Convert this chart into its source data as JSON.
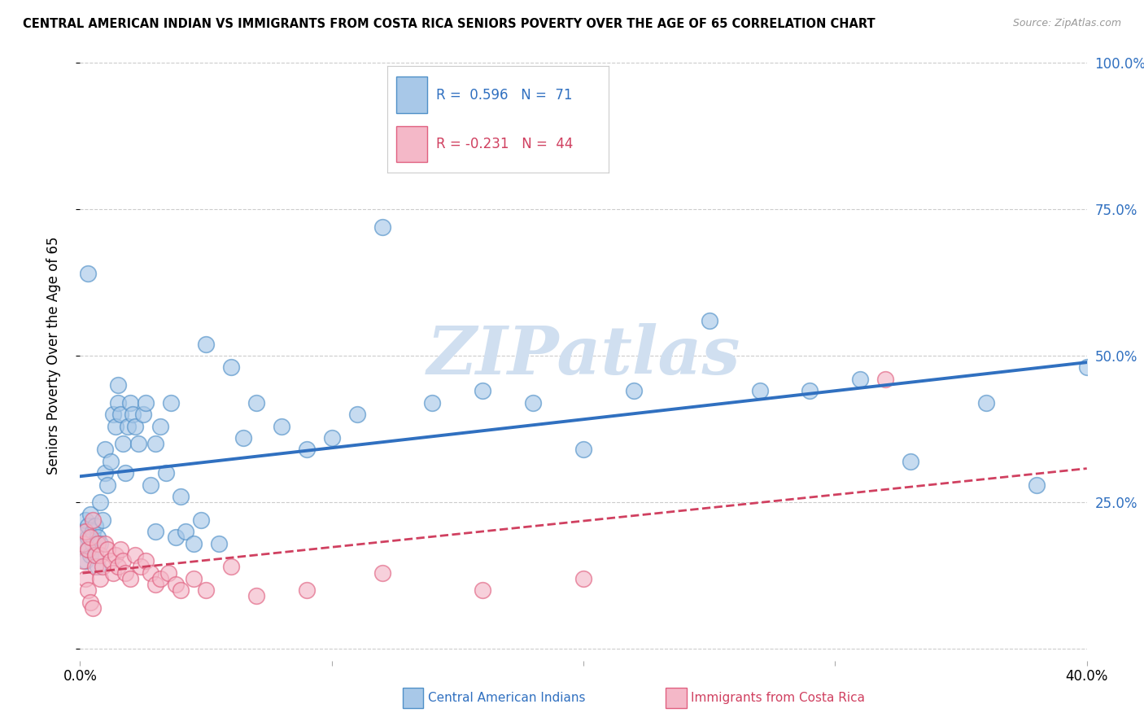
{
  "title": "CENTRAL AMERICAN INDIAN VS IMMIGRANTS FROM COSTA RICA SENIORS POVERTY OVER THE AGE OF 65 CORRELATION CHART",
  "source": "Source: ZipAtlas.com",
  "ylabel": "Seniors Poverty Over the Age of 65",
  "xlim": [
    0.0,
    0.4
  ],
  "ylim": [
    -0.02,
    1.02
  ],
  "xticks": [
    0.0,
    0.1,
    0.2,
    0.3,
    0.4
  ],
  "xticklabels": [
    "0.0%",
    "",
    "",
    "",
    "40.0%"
  ],
  "yticks": [
    0.0,
    0.25,
    0.5,
    0.75,
    1.0
  ],
  "yticklabels_left": [
    "",
    "",
    "",
    "",
    ""
  ],
  "yticklabels_right": [
    "",
    "25.0%",
    "50.0%",
    "75.0%",
    "100.0%"
  ],
  "blue_R": 0.596,
  "blue_N": 71,
  "pink_R": -0.231,
  "pink_N": 44,
  "blue_fill": "#a8c8e8",
  "pink_fill": "#f4b8c8",
  "blue_edge": "#5090c8",
  "pink_edge": "#e06080",
  "blue_line": "#3070c0",
  "pink_line": "#d04060",
  "watermark": "ZIPatlas",
  "watermark_color": "#d0dff0",
  "bg": "#ffffff",
  "grid_color": "#cccccc",
  "blue_scatter_x": [
    0.001,
    0.001,
    0.002,
    0.002,
    0.003,
    0.003,
    0.003,
    0.004,
    0.004,
    0.005,
    0.005,
    0.006,
    0.006,
    0.007,
    0.007,
    0.008,
    0.008,
    0.009,
    0.01,
    0.01,
    0.011,
    0.012,
    0.013,
    0.014,
    0.015,
    0.015,
    0.016,
    0.017,
    0.018,
    0.019,
    0.02,
    0.021,
    0.022,
    0.023,
    0.025,
    0.026,
    0.028,
    0.03,
    0.03,
    0.032,
    0.034,
    0.036,
    0.038,
    0.04,
    0.042,
    0.045,
    0.048,
    0.05,
    0.055,
    0.06,
    0.065,
    0.07,
    0.08,
    0.09,
    0.1,
    0.11,
    0.12,
    0.14,
    0.16,
    0.18,
    0.2,
    0.22,
    0.25,
    0.27,
    0.29,
    0.31,
    0.33,
    0.36,
    0.38,
    0.4,
    0.003
  ],
  "blue_scatter_y": [
    0.18,
    0.2,
    0.22,
    0.15,
    0.19,
    0.21,
    0.17,
    0.16,
    0.23,
    0.2,
    0.18,
    0.16,
    0.21,
    0.14,
    0.19,
    0.25,
    0.18,
    0.22,
    0.3,
    0.34,
    0.28,
    0.32,
    0.4,
    0.38,
    0.42,
    0.45,
    0.4,
    0.35,
    0.3,
    0.38,
    0.42,
    0.4,
    0.38,
    0.35,
    0.4,
    0.42,
    0.28,
    0.35,
    0.2,
    0.38,
    0.3,
    0.42,
    0.19,
    0.26,
    0.2,
    0.18,
    0.22,
    0.52,
    0.18,
    0.48,
    0.36,
    0.42,
    0.38,
    0.34,
    0.36,
    0.4,
    0.72,
    0.42,
    0.44,
    0.42,
    0.34,
    0.44,
    0.56,
    0.44,
    0.44,
    0.46,
    0.32,
    0.42,
    0.28,
    0.48,
    0.64
  ],
  "pink_scatter_x": [
    0.001,
    0.001,
    0.002,
    0.002,
    0.003,
    0.003,
    0.004,
    0.004,
    0.005,
    0.005,
    0.006,
    0.006,
    0.007,
    0.008,
    0.008,
    0.009,
    0.01,
    0.011,
    0.012,
    0.013,
    0.014,
    0.015,
    0.016,
    0.017,
    0.018,
    0.02,
    0.022,
    0.024,
    0.026,
    0.028,
    0.03,
    0.032,
    0.035,
    0.038,
    0.04,
    0.045,
    0.05,
    0.06,
    0.07,
    0.09,
    0.12,
    0.16,
    0.2,
    0.32
  ],
  "pink_scatter_y": [
    0.15,
    0.18,
    0.12,
    0.2,
    0.1,
    0.17,
    0.08,
    0.19,
    0.07,
    0.22,
    0.14,
    0.16,
    0.18,
    0.12,
    0.16,
    0.14,
    0.18,
    0.17,
    0.15,
    0.13,
    0.16,
    0.14,
    0.17,
    0.15,
    0.13,
    0.12,
    0.16,
    0.14,
    0.15,
    0.13,
    0.11,
    0.12,
    0.13,
    0.11,
    0.1,
    0.12,
    0.1,
    0.14,
    0.09,
    0.1,
    0.13,
    0.1,
    0.12,
    0.46
  ]
}
